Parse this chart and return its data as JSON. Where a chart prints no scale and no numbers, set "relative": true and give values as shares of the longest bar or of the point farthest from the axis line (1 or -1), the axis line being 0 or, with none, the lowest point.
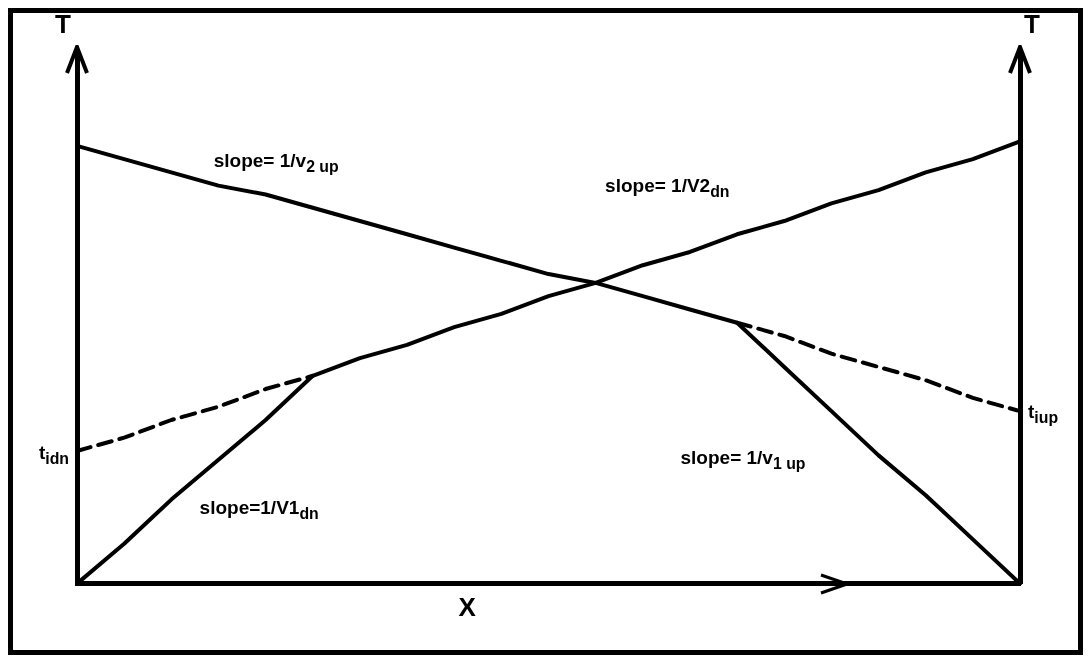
{
  "chart_data": {
    "type": "line",
    "relative": true,
    "xlabel": "X",
    "ylabel": "T",
    "y2label": "T",
    "legend": false,
    "grid": false,
    "marker": "none",
    "categories": [
      null,
      null,
      null,
      null,
      null,
      null,
      null,
      null,
      null,
      null,
      null,
      null,
      null,
      null,
      null,
      null,
      null,
      null,
      null,
      null,
      null
    ],
    "series": [
      {
        "color": "#000000",
        "values": [
          0,
          0.09,
          0.19,
          0.28,
          0.37,
          0.47,
          0.51,
          0.54,
          0.58,
          0.61,
          0.65,
          0.68,
          0.72,
          0.75,
          0.79,
          0.82,
          0.86,
          0.89,
          0.93,
          0.96,
          1.0
        ]
      },
      {
        "color": "#000000",
        "values": [
          0.3,
          0.33,
          0.37,
          0.4,
          0.44,
          0.47,
          null,
          null,
          null,
          null,
          null,
          null,
          null,
          null,
          null,
          null,
          null,
          null,
          null,
          null,
          null
        ],
        "line_style": "dashed"
      },
      {
        "color": "#000000",
        "values": [
          0.99,
          0.96,
          0.93,
          0.9,
          0.88,
          0.85,
          0.82,
          0.79,
          0.76,
          0.73,
          0.7,
          0.68,
          0.65,
          0.62,
          0.59,
          0.49,
          0.39,
          0.29,
          0.2,
          0.1,
          0
        ]
      },
      {
        "color": "#000000",
        "values": [
          null,
          null,
          null,
          null,
          null,
          null,
          null,
          null,
          null,
          null,
          null,
          null,
          null,
          null,
          0.59,
          0.56,
          0.52,
          0.49,
          0.46,
          0.42,
          0.39
        ],
        "line_style": "dashed"
      }
    ],
    "annotations": [
      "slope= 1/v$_{2 up}$",
      "slope= 1/V2$_{dn}$",
      "t$_{idn}$",
      "t$_{iup}$",
      "slope=1/V1$_{dn}$",
      "slope= 1/v$_{1 up}$"
    ]
  }
}
